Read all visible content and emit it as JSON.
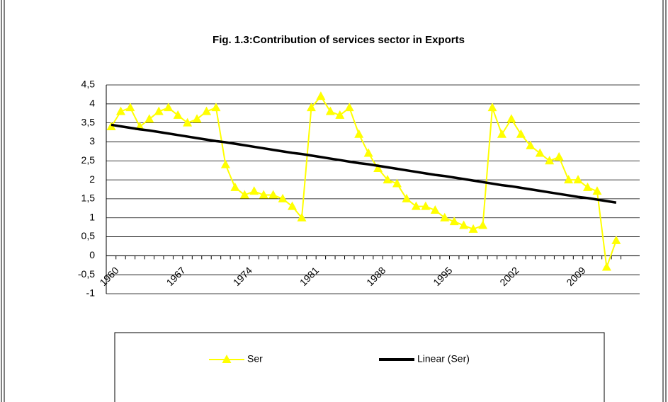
{
  "chart_data": {
    "type": "line",
    "title": "Fig. 1.3:Contribution of services sector in Exports",
    "categories": [
      "1960",
      null,
      null,
      null,
      null,
      null,
      null,
      "1967",
      null,
      null,
      null,
      null,
      null,
      null,
      "1974",
      null,
      null,
      null,
      null,
      null,
      null,
      "1981",
      null,
      null,
      null,
      null,
      null,
      null,
      "1988",
      null,
      null,
      null,
      null,
      null,
      null,
      "1995",
      null,
      null,
      null,
      null,
      null,
      null,
      "2002",
      null,
      null,
      null,
      null,
      null,
      null,
      "2009",
      null,
      null,
      null,
      null
    ],
    "series": [
      {
        "name": "Ser",
        "color": "#ffff00",
        "marker": "triangle",
        "values": [
          3.4,
          3.8,
          3.9,
          3.4,
          3.6,
          3.8,
          3.9,
          3.7,
          3.5,
          3.6,
          3.8,
          3.9,
          2.4,
          1.8,
          1.6,
          1.7,
          1.6,
          1.6,
          1.5,
          1.3,
          1.0,
          3.9,
          4.2,
          3.8,
          3.7,
          3.9,
          3.2,
          2.7,
          2.3,
          2.0,
          1.9,
          1.5,
          1.3,
          1.3,
          1.2,
          1.0,
          0.9,
          0.8,
          0.7,
          0.8,
          3.9,
          3.2,
          3.6,
          3.2,
          2.9,
          2.7,
          2.5,
          2.6,
          2.0,
          2.0,
          1.8,
          1.7,
          -0.3,
          0.4
        ]
      },
      {
        "name": "Linear (Ser)",
        "color": "#000000",
        "marker": "none",
        "values": [
          3.45,
          3.41,
          3.37,
          3.33,
          3.3,
          3.26,
          3.22,
          3.18,
          3.14,
          3.1,
          3.06,
          3.02,
          2.99,
          2.95,
          2.91,
          2.87,
          2.83,
          2.79,
          2.75,
          2.71,
          2.68,
          2.64,
          2.6,
          2.56,
          2.52,
          2.48,
          2.44,
          2.41,
          2.37,
          2.33,
          2.29,
          2.25,
          2.21,
          2.17,
          2.13,
          2.1,
          2.06,
          2.02,
          1.98,
          1.94,
          1.9,
          1.86,
          1.83,
          1.79,
          1.75,
          1.71,
          1.67,
          1.63,
          1.59,
          1.55,
          1.52,
          1.48,
          1.44,
          1.4
        ]
      }
    ],
    "ylim": [
      -1,
      4.5
    ],
    "yticks": [
      -1,
      {
        "value": -0.5,
        "label": "-0,5"
      },
      0,
      {
        "value": 0.5,
        "label": "0,5"
      },
      1,
      {
        "value": 1.5,
        "label": "1,5"
      },
      2,
      {
        "value": 2.5,
        "label": "2,5"
      },
      3,
      {
        "value": 3.5,
        "label": "3,5"
      },
      4,
      {
        "value": 4.5,
        "label": "4,5"
      }
    ],
    "grid": true,
    "legend": "bottom"
  }
}
